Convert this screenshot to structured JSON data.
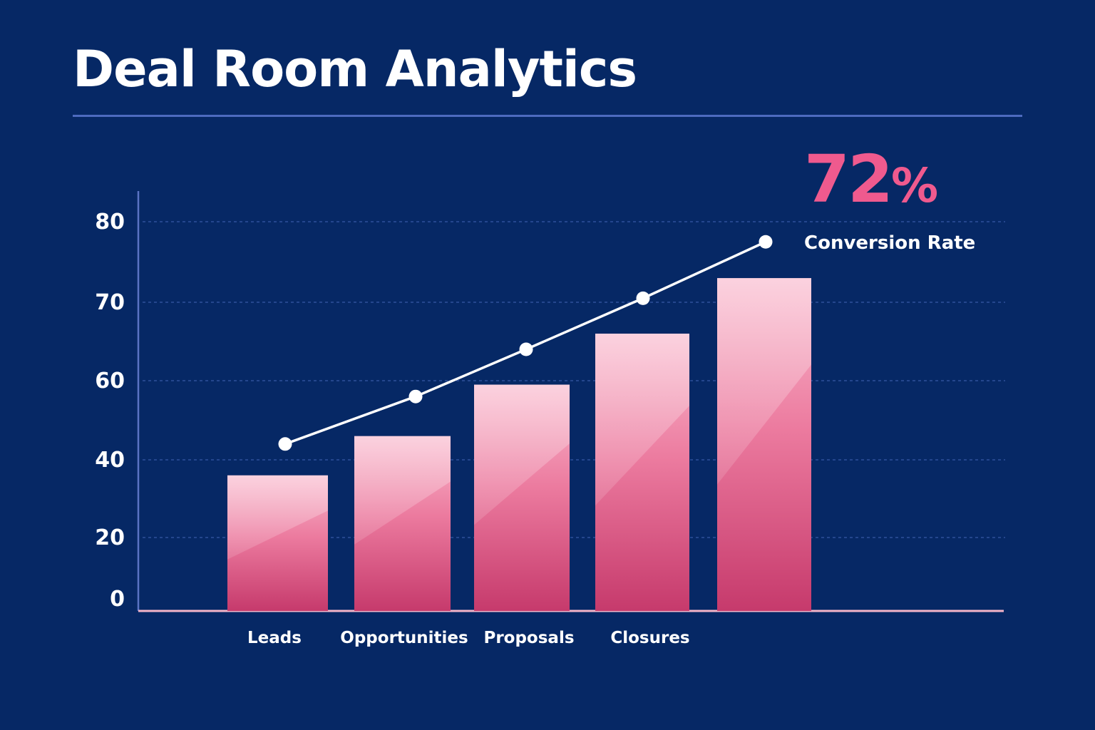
{
  "title": "Deal Room Analytics",
  "kpi": {
    "value": "72",
    "unit": "%",
    "label": "Conversion Rate"
  },
  "colors": {
    "background": "#062865",
    "rule": "#4d6bbf",
    "bar_top": "#f9b9cd",
    "bar_bottom": "#c63a6c",
    "line": "#ffffff",
    "accent": "#ef5a8e"
  },
  "chart_data": {
    "type": "bar",
    "categories": [
      "Leads",
      "Opportunities",
      "Proposals",
      "Closures",
      ""
    ],
    "series": [
      {
        "type": "bar",
        "values": [
          36,
          46,
          59,
          66,
          73
        ]
      },
      {
        "type": "line",
        "values": [
          44,
          56,
          64,
          70.5,
          77.5
        ]
      }
    ],
    "yticks": [
      0,
      20,
      40,
      60,
      70,
      80
    ],
    "ylim": [
      0,
      80
    ],
    "grid": true,
    "xlabel": "",
    "ylabel": ""
  }
}
